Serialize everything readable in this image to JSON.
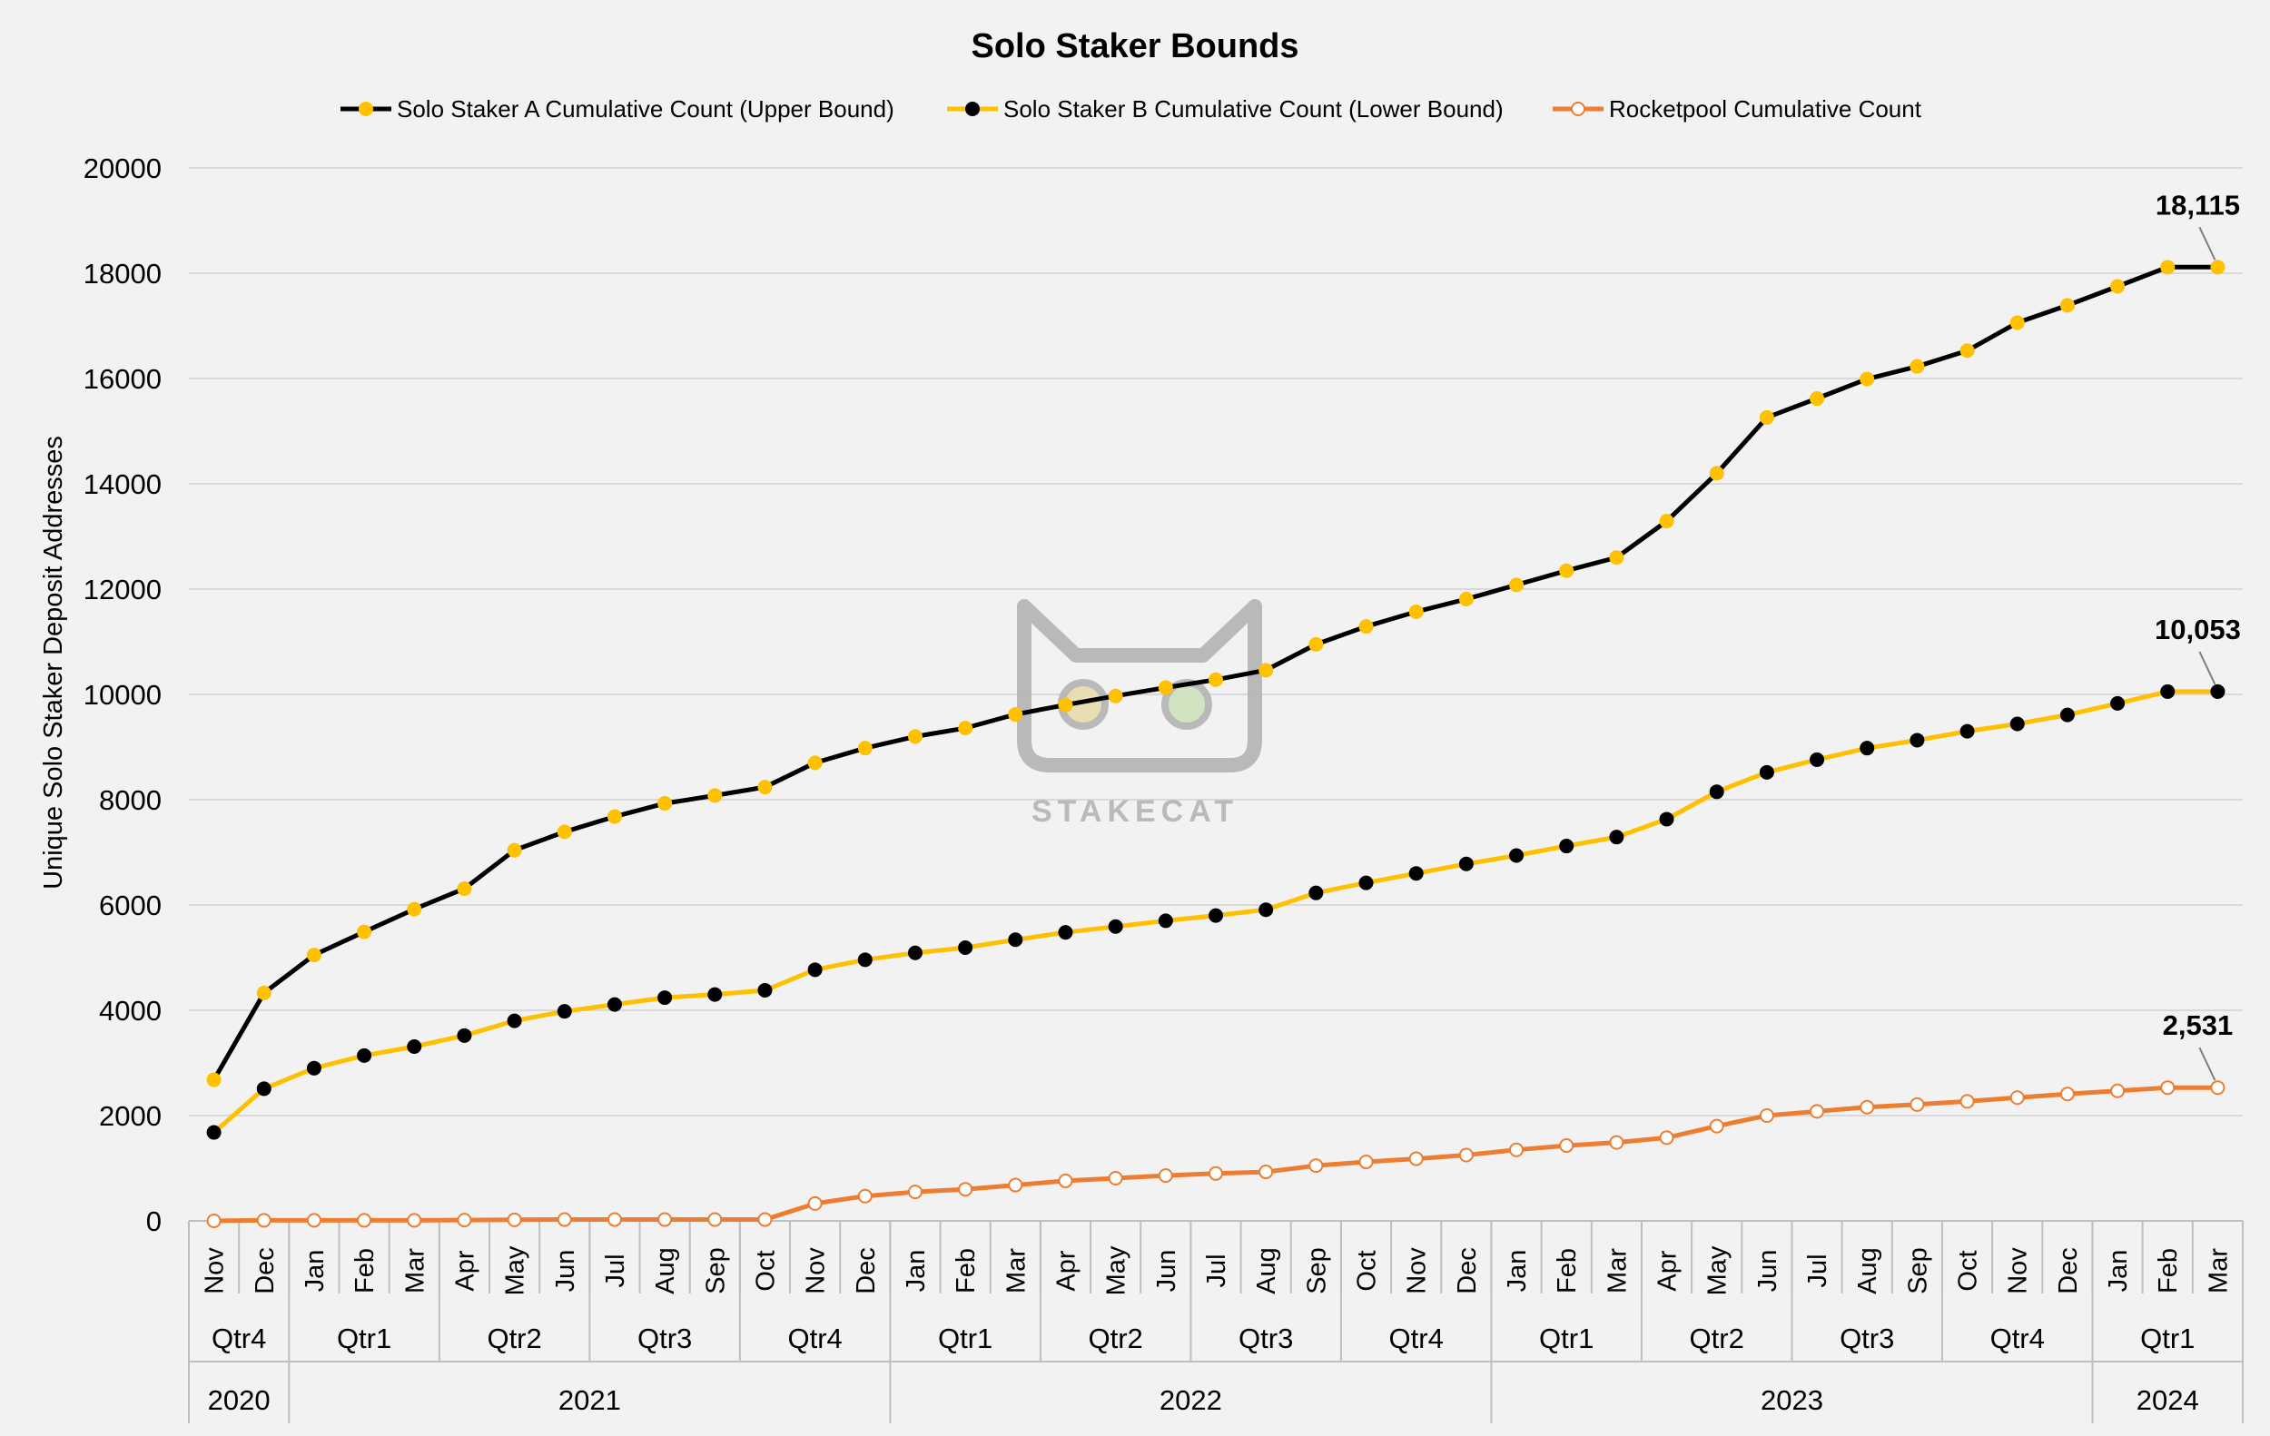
{
  "colors": {
    "background": "#f2f2f2",
    "grid": "#d9d9d9",
    "series_a_line": "#000000",
    "series_a_marker": "#ffc000",
    "series_b_line": "#ffc000",
    "series_b_marker": "#000000",
    "rocketpool_line": "#ed7d31",
    "rocketpool_marker_fill": "#ffffff"
  },
  "watermark": {
    "text": "STAKECAT"
  },
  "chart_data": {
    "type": "line",
    "title": "Solo Staker Bounds",
    "xlabel": "",
    "ylabel": "Unique Solo Staker Deposit Addresses",
    "ylim": [
      0,
      20000
    ],
    "yticks": [
      0,
      2000,
      4000,
      6000,
      8000,
      10000,
      12000,
      14000,
      16000,
      18000,
      20000
    ],
    "grid": true,
    "legend_position": "top-center",
    "categories": [
      "Nov",
      "Dec",
      "Jan",
      "Feb",
      "Mar",
      "Apr",
      "May",
      "Jun",
      "Jul",
      "Aug",
      "Sep",
      "Oct",
      "Nov",
      "Dec",
      "Jan",
      "Feb",
      "Mar",
      "Apr",
      "May",
      "Jun",
      "Jul",
      "Aug",
      "Sep",
      "Oct",
      "Nov",
      "Dec",
      "Jan",
      "Feb",
      "Mar",
      "Apr",
      "May",
      "Jun",
      "Jul",
      "Aug",
      "Sep",
      "Oct",
      "Nov",
      "Dec",
      "Jan",
      "Feb",
      "Mar"
    ],
    "quarters": [
      {
        "label": "Qtr4",
        "count": 2
      },
      {
        "label": "Qtr1",
        "count": 3
      },
      {
        "label": "Qtr2",
        "count": 3
      },
      {
        "label": "Qtr3",
        "count": 3
      },
      {
        "label": "Qtr4",
        "count": 3
      },
      {
        "label": "Qtr1",
        "count": 3
      },
      {
        "label": "Qtr2",
        "count": 3
      },
      {
        "label": "Qtr3",
        "count": 3
      },
      {
        "label": "Qtr4",
        "count": 3
      },
      {
        "label": "Qtr1",
        "count": 3
      },
      {
        "label": "Qtr2",
        "count": 3
      },
      {
        "label": "Qtr3",
        "count": 3
      },
      {
        "label": "Qtr4",
        "count": 3
      },
      {
        "label": "Qtr1",
        "count": 3
      }
    ],
    "years": [
      {
        "label": "2020",
        "count": 2
      },
      {
        "label": "2021",
        "count": 12
      },
      {
        "label": "2022",
        "count": 12
      },
      {
        "label": "2023",
        "count": 12
      },
      {
        "label": "2024",
        "count": 3
      }
    ],
    "series": [
      {
        "name": "Solo Staker A Cumulative Count (Upper Bound)",
        "values": [
          2680,
          4330,
          5050,
          5490,
          5920,
          6310,
          7040,
          7390,
          7680,
          7930,
          8080,
          8240,
          8700,
          8980,
          9200,
          9360,
          9620,
          9800,
          9970,
          10130,
          10280,
          10460,
          10950,
          11290,
          11570,
          11810,
          12080,
          12350,
          12600,
          13290,
          14200,
          15260,
          15620,
          15990,
          16230,
          16530,
          17060,
          17390,
          17750,
          18115,
          18115
        ],
        "end_label": "18,115"
      },
      {
        "name": "Solo Staker B Cumulative Count (Lower Bound)",
        "values": [
          1680,
          2510,
          2900,
          3140,
          3310,
          3520,
          3800,
          3980,
          4110,
          4240,
          4300,
          4380,
          4770,
          4960,
          5090,
          5190,
          5340,
          5480,
          5590,
          5700,
          5800,
          5910,
          6230,
          6420,
          6600,
          6780,
          6940,
          7120,
          7290,
          7630,
          8150,
          8520,
          8760,
          8980,
          9130,
          9300,
          9440,
          9610,
          9830,
          10053,
          10053
        ],
        "end_label": "10,053"
      },
      {
        "name": "Rocketpool Cumulative Count",
        "values": [
          0,
          10,
          10,
          10,
          10,
          15,
          20,
          25,
          25,
          25,
          25,
          25,
          330,
          470,
          550,
          600,
          680,
          760,
          810,
          860,
          900,
          930,
          1050,
          1120,
          1180,
          1250,
          1350,
          1430,
          1490,
          1580,
          1800,
          2000,
          2080,
          2160,
          2210,
          2270,
          2340,
          2410,
          2470,
          2531,
          2531
        ],
        "end_label": "2,531"
      }
    ]
  }
}
